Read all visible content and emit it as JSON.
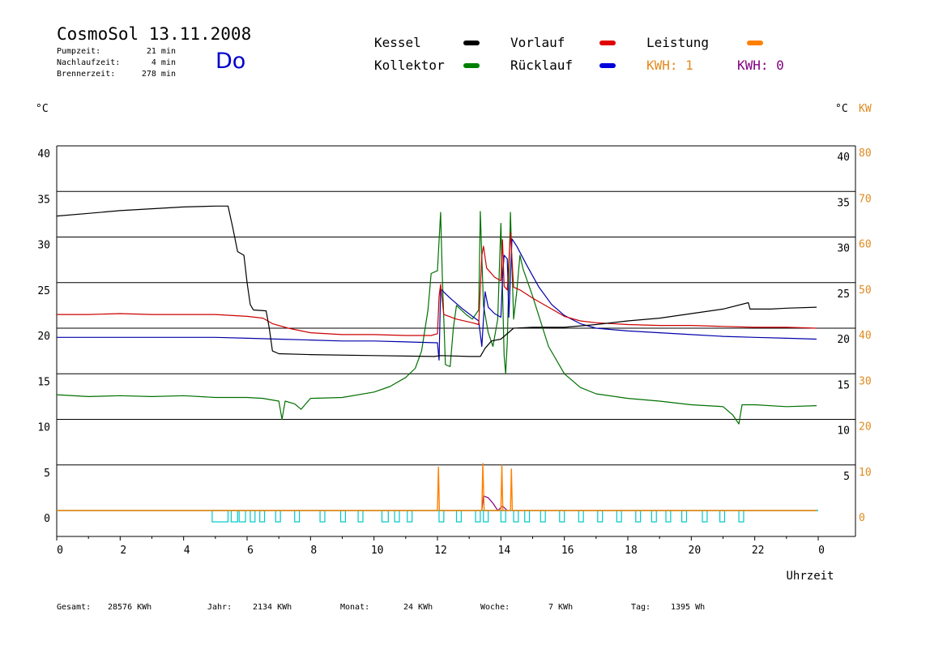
{
  "header": {
    "title": "CosmoSol 13.11.2008",
    "day": "Do",
    "stats": [
      {
        "label": "Pumpzeit:",
        "value": "21 min"
      },
      {
        "label": "Nachlaufzeit:",
        "value": "4 min"
      },
      {
        "label": "Brennerzeit:",
        "value": "278 min"
      }
    ]
  },
  "legend": [
    {
      "label": "Kessel",
      "color": "#000000"
    },
    {
      "label": "Vorlauf",
      "color": "#e00000"
    },
    {
      "label": "Leistung",
      "color": "#ff8000"
    },
    {
      "label": "Kollektor",
      "color": "#008000"
    },
    {
      "label": "Rücklauf",
      "color": "#0000dd"
    }
  ],
  "kwh": [
    {
      "label": "KWH: 1",
      "color": "#e08a1e"
    },
    {
      "label": "KWH: 0",
      "color": "#800080"
    }
  ],
  "footer": [
    {
      "label": "Gesamt:",
      "value": "28576 KWh"
    },
    {
      "label": "Jahr:",
      "value": "2134 KWh"
    },
    {
      "label": "Monat:",
      "value": "24 KWh"
    },
    {
      "label": "Woche:",
      "value": "7 KWh"
    },
    {
      "label": "Tag:",
      "value": "1395 Wh"
    }
  ],
  "chart_data": {
    "type": "line",
    "xlabel": "Uhrzeit",
    "ylabel_left": "°C",
    "ylabel_right": "°C",
    "ylabel_right2": "KW",
    "xlim": [
      0,
      24
    ],
    "ylim": [
      0,
      40
    ],
    "ylim_right2": [
      0,
      80
    ],
    "grid": "horizontal",
    "x_ticks": [
      "0",
      "2",
      "4",
      "6",
      "8",
      "10",
      "12",
      "14",
      "16",
      "18",
      "20",
      "22",
      "0"
    ],
    "y_ticks_left": [
      "40",
      "35",
      "30",
      "25",
      "20",
      "15",
      "10",
      "5",
      "0"
    ],
    "y_ticks_right": [
      "40",
      "35",
      "30",
      "25",
      "20",
      "15",
      "10",
      "5"
    ],
    "y_ticks_right2": [
      "80",
      "70",
      "60",
      "50",
      "40",
      "30",
      "20",
      "10",
      "0"
    ],
    "series": [
      {
        "name": "Kessel",
        "color": "#000000",
        "points": [
          [
            0,
            32.3
          ],
          [
            1,
            32.6
          ],
          [
            2,
            32.9
          ],
          [
            3,
            33.1
          ],
          [
            4,
            33.3
          ],
          [
            5,
            33.4
          ],
          [
            5.4,
            33.4
          ],
          [
            5.55,
            31
          ],
          [
            5.7,
            28.4
          ],
          [
            5.9,
            28
          ],
          [
            6.0,
            25
          ],
          [
            6.1,
            22.6
          ],
          [
            6.2,
            22
          ],
          [
            6.6,
            21.9
          ],
          [
            6.7,
            20
          ],
          [
            6.8,
            17.5
          ],
          [
            7.0,
            17.2
          ],
          [
            8,
            17.1
          ],
          [
            10,
            17.0
          ],
          [
            11.9,
            16.9
          ],
          [
            12.1,
            17.0
          ],
          [
            13,
            16.9
          ],
          [
            13.35,
            16.9
          ],
          [
            13.5,
            17.8
          ],
          [
            13.7,
            18.6
          ],
          [
            14,
            18.8
          ],
          [
            14.4,
            20.0
          ],
          [
            15,
            20.1
          ],
          [
            16,
            20.1
          ],
          [
            17,
            20.4
          ],
          [
            18,
            20.8
          ],
          [
            19,
            21.1
          ],
          [
            20,
            21.6
          ],
          [
            21,
            22.1
          ],
          [
            21.8,
            22.8
          ],
          [
            21.85,
            22.1
          ],
          [
            22.5,
            22.1
          ],
          [
            23,
            22.2
          ],
          [
            23.95,
            22.3
          ]
        ]
      },
      {
        "name": "Vorlauf",
        "color": "#cc0000",
        "points": [
          [
            0,
            21.5
          ],
          [
            1,
            21.5
          ],
          [
            2,
            21.6
          ],
          [
            3,
            21.5
          ],
          [
            4,
            21.5
          ],
          [
            5,
            21.5
          ],
          [
            6,
            21.3
          ],
          [
            6.5,
            21.1
          ],
          [
            6.8,
            20.5
          ],
          [
            7.3,
            20.0
          ],
          [
            8,
            19.5
          ],
          [
            9,
            19.3
          ],
          [
            10,
            19.3
          ],
          [
            11,
            19.2
          ],
          [
            11.8,
            19.2
          ],
          [
            12.0,
            19.4
          ],
          [
            12.05,
            23.5
          ],
          [
            12.1,
            24.8
          ],
          [
            12.2,
            21.5
          ],
          [
            12.6,
            21.0
          ],
          [
            13.1,
            20.6
          ],
          [
            13.3,
            20.4
          ],
          [
            13.4,
            28.0
          ],
          [
            13.45,
            29.0
          ],
          [
            13.55,
            26.6
          ],
          [
            13.8,
            25.6
          ],
          [
            14.0,
            25.2
          ],
          [
            14.05,
            29.7
          ],
          [
            14.1,
            24.6
          ],
          [
            14.2,
            24.2
          ],
          [
            14.3,
            30.5
          ],
          [
            14.4,
            24.5
          ],
          [
            14.6,
            24.2
          ],
          [
            15,
            23.3
          ],
          [
            15.5,
            22.3
          ],
          [
            16,
            21.3
          ],
          [
            16.5,
            20.8
          ],
          [
            17,
            20.6
          ],
          [
            18,
            20.4
          ],
          [
            19,
            20.3
          ],
          [
            20,
            20.3
          ],
          [
            21,
            20.2
          ],
          [
            22,
            20.1
          ],
          [
            23,
            20.1
          ],
          [
            23.95,
            20.0
          ]
        ]
      },
      {
        "name": "Rücklauf",
        "color": "#0000aa",
        "points": [
          [
            0,
            19.0
          ],
          [
            1,
            19.0
          ],
          [
            2,
            19.0
          ],
          [
            3,
            19.0
          ],
          [
            4,
            19.0
          ],
          [
            5,
            19.0
          ],
          [
            6,
            18.9
          ],
          [
            7,
            18.8
          ],
          [
            8,
            18.7
          ],
          [
            9,
            18.6
          ],
          [
            10,
            18.6
          ],
          [
            11,
            18.5
          ],
          [
            12.0,
            18.4
          ],
          [
            12.05,
            16.5
          ],
          [
            12.1,
            24.3
          ],
          [
            12.4,
            23.3
          ],
          [
            12.8,
            22.1
          ],
          [
            13.1,
            21.3
          ],
          [
            13.3,
            20.8
          ],
          [
            13.4,
            18.0
          ],
          [
            13.5,
            24.0
          ],
          [
            13.6,
            22.3
          ],
          [
            13.8,
            21.6
          ],
          [
            14.0,
            21.2
          ],
          [
            14.05,
            25.5
          ],
          [
            14.1,
            28.0
          ],
          [
            14.2,
            27.6
          ],
          [
            14.25,
            21.2
          ],
          [
            14.35,
            29.8
          ],
          [
            14.5,
            29.0
          ],
          [
            14.8,
            27.0
          ],
          [
            15.2,
            24.5
          ],
          [
            15.6,
            22.6
          ],
          [
            16,
            21.4
          ],
          [
            16.5,
            20.5
          ],
          [
            17,
            20.0
          ],
          [
            18,
            19.7
          ],
          [
            19,
            19.5
          ],
          [
            20,
            19.3
          ],
          [
            21,
            19.1
          ],
          [
            22,
            19.0
          ],
          [
            23,
            18.9
          ],
          [
            23.95,
            18.8
          ]
        ]
      },
      {
        "name": "Kollektor",
        "color": "#007000",
        "points": [
          [
            0,
            12.7
          ],
          [
            1,
            12.5
          ],
          [
            2,
            12.6
          ],
          [
            3,
            12.5
          ],
          [
            4,
            12.6
          ],
          [
            5,
            12.4
          ],
          [
            6,
            12.4
          ],
          [
            6.5,
            12.3
          ],
          [
            7.0,
            12.0
          ],
          [
            7.1,
            10.0
          ],
          [
            7.2,
            12.0
          ],
          [
            7.5,
            11.7
          ],
          [
            7.7,
            11.1
          ],
          [
            8,
            12.3
          ],
          [
            9,
            12.4
          ],
          [
            10,
            13.0
          ],
          [
            10.5,
            13.6
          ],
          [
            11,
            14.6
          ],
          [
            11.3,
            15.6
          ],
          [
            11.5,
            17.5
          ],
          [
            11.7,
            22.0
          ],
          [
            11.8,
            26.0
          ],
          [
            12.0,
            26.3
          ],
          [
            12.1,
            32.7
          ],
          [
            12.15,
            26.0
          ],
          [
            12.25,
            16.0
          ],
          [
            12.4,
            15.8
          ],
          [
            12.5,
            20.0
          ],
          [
            12.6,
            22.5
          ],
          [
            12.9,
            21.5
          ],
          [
            13.1,
            21.0
          ],
          [
            13.3,
            22.0
          ],
          [
            13.35,
            32.8
          ],
          [
            13.45,
            22.5
          ],
          [
            13.6,
            19.5
          ],
          [
            13.75,
            18.0
          ],
          [
            13.9,
            21.0
          ],
          [
            14.0,
            31.5
          ],
          [
            14.1,
            17.0
          ],
          [
            14.15,
            15.0
          ],
          [
            14.2,
            18.5
          ],
          [
            14.3,
            32.7
          ],
          [
            14.4,
            21.0
          ],
          [
            14.5,
            24.0
          ],
          [
            14.6,
            28.0
          ],
          [
            14.7,
            26.5
          ],
          [
            15,
            23.5
          ],
          [
            15.5,
            18.0
          ],
          [
            16,
            15.0
          ],
          [
            16.5,
            13.5
          ],
          [
            17,
            12.8
          ],
          [
            18,
            12.3
          ],
          [
            19,
            12.0
          ],
          [
            20,
            11.6
          ],
          [
            21,
            11.4
          ],
          [
            21.3,
            10.5
          ],
          [
            21.5,
            9.5
          ],
          [
            21.6,
            11.6
          ],
          [
            22,
            11.6
          ],
          [
            23,
            11.4
          ],
          [
            23.95,
            11.5
          ]
        ]
      }
    ],
    "power_kw": {
      "name": "Leistung",
      "color": "#ff8000",
      "points": [
        [
          0,
          0
        ],
        [
          12.0,
          0
        ],
        [
          12.03,
          4.8
        ],
        [
          12.06,
          0
        ],
        [
          13.4,
          0
        ],
        [
          13.43,
          5.2
        ],
        [
          13.47,
          0
        ],
        [
          14.0,
          0
        ],
        [
          14.03,
          5.0
        ],
        [
          14.06,
          0
        ],
        [
          14.3,
          0
        ],
        [
          14.33,
          4.6
        ],
        [
          14.36,
          0
        ],
        [
          23.95,
          0
        ]
      ]
    },
    "purple_trace": {
      "color": "#800080",
      "points": [
        [
          13.4,
          0
        ],
        [
          13.45,
          1.6
        ],
        [
          13.6,
          1.4
        ],
        [
          13.75,
          0.8
        ],
        [
          13.9,
          0
        ],
        [
          14.05,
          0.5
        ],
        [
          14.2,
          0
        ]
      ]
    },
    "pump_marks": {
      "color": "#00c8c8",
      "intervals": [
        [
          4.9,
          5.4
        ],
        [
          5.5,
          5.7
        ],
        [
          5.75,
          5.95
        ],
        [
          6.1,
          6.25
        ],
        [
          6.4,
          6.55
        ],
        [
          6.9,
          7.05
        ],
        [
          7.5,
          7.65
        ],
        [
          8.3,
          8.45
        ],
        [
          8.95,
          9.1
        ],
        [
          9.5,
          9.65
        ],
        [
          10.25,
          10.45
        ],
        [
          10.65,
          10.8
        ],
        [
          11.05,
          11.2
        ],
        [
          12.05,
          12.2
        ],
        [
          12.6,
          12.75
        ],
        [
          13.2,
          13.35
        ],
        [
          13.45,
          13.6
        ],
        [
          14.0,
          14.15
        ],
        [
          14.4,
          14.55
        ],
        [
          14.75,
          14.9
        ],
        [
          15.25,
          15.4
        ],
        [
          15.85,
          16.0
        ],
        [
          16.45,
          16.6
        ],
        [
          17.05,
          17.2
        ],
        [
          17.65,
          17.8
        ],
        [
          18.25,
          18.4
        ],
        [
          18.75,
          18.9
        ],
        [
          19.2,
          19.35
        ],
        [
          19.7,
          19.85
        ],
        [
          20.35,
          20.5
        ],
        [
          20.9,
          21.05
        ],
        [
          21.5,
          21.65
        ]
      ]
    }
  }
}
